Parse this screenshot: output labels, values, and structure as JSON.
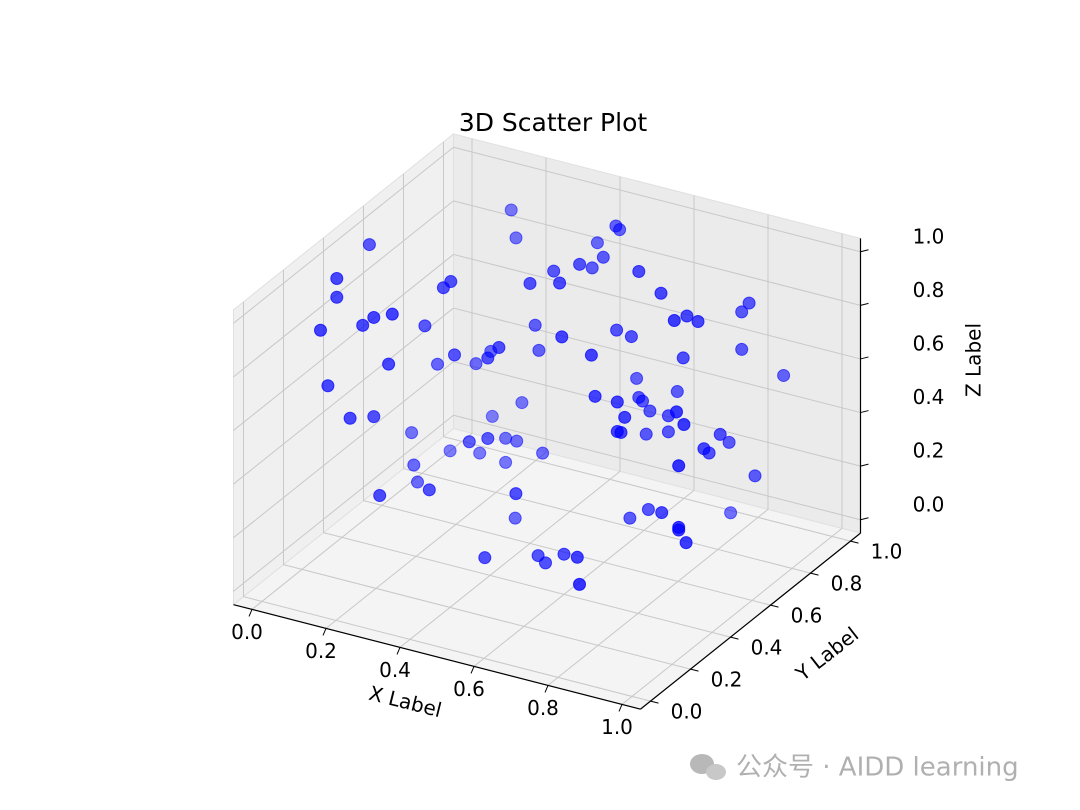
{
  "chart_data": {
    "type": "scatter3d",
    "title": "3D Scatter Plot",
    "x_label": "X Label",
    "y_label": "Y Label",
    "z_label": "Z Label",
    "color": "#0000ff",
    "xlim": [
      0,
      1
    ],
    "ylim": [
      0,
      1
    ],
    "zlim": [
      0,
      1
    ],
    "xticks": [
      {
        "value": 0,
        "label": "0.0"
      },
      {
        "value": 0.2,
        "label": "0.2"
      },
      {
        "value": 0.4,
        "label": "0.4"
      },
      {
        "value": 0.6,
        "label": "0.6"
      },
      {
        "value": 0.8,
        "label": "0.8"
      },
      {
        "value": 1,
        "label": "1.0"
      }
    ],
    "yticks": [
      {
        "value": 0,
        "label": "0.0"
      },
      {
        "value": 0.2,
        "label": "0.2"
      },
      {
        "value": 0.4,
        "label": "0.4"
      },
      {
        "value": 0.6,
        "label": "0.6"
      },
      {
        "value": 0.8,
        "label": "0.8"
      },
      {
        "value": 1,
        "label": "1.0"
      }
    ],
    "zticks": [
      {
        "value": 0,
        "label": "0.0"
      },
      {
        "value": 0.2,
        "label": "0.2"
      },
      {
        "value": 0.4,
        "label": "0.4"
      },
      {
        "value": 0.6,
        "label": "0.6"
      },
      {
        "value": 0.8,
        "label": "0.8"
      },
      {
        "value": 1,
        "label": "1.0"
      }
    ],
    "grid": true,
    "x": [
      0.16,
      0.2,
      0.02,
      0.04,
      0.04,
      0.05,
      0.11,
      0.14,
      0.19,
      0.17,
      0.22,
      0.24,
      0.4,
      0.41,
      0.48,
      0.48,
      0.46,
      0.42,
      0.49,
      0.47,
      0.48,
      0.64,
      0.7,
      0.79,
      0.77,
      0.8,
      0.81,
      0.83,
      0.81,
      0.88,
      0.76,
      0.62,
      0.58,
      0.62,
      0.54,
      0.36,
      0.37,
      0.37,
      0.24,
      0.34,
      0.2,
      0.25,
      0.15,
      0.18,
      0.07,
      0.13,
      0.14,
      0.08,
      0.27,
      0.19,
      0.34,
      0.29,
      0.13,
      0.21,
      0.28,
      0.31,
      0.38,
      0.28,
      0.14,
      0.15,
      0.29,
      0.21,
      0.47,
      0.36,
      0.44,
      0.53,
      0.55,
      0.6,
      0.69,
      0.75,
      0.63,
      0.69,
      0.58,
      0.64,
      0.65,
      0.71,
      0.7,
      0.69,
      0.67,
      0.72,
      0.85,
      0.87,
      0.69,
      0.72,
      0.66,
      0.87,
      0.83,
      0.86,
      0.83,
      0.91,
      0.9,
      0.67,
      0.72,
      0.81,
      0.91,
      0.91,
      0.93,
      0.78
    ],
    "y": [
      0.95,
      0.9,
      0.5,
      0.3,
      0.3,
      0.2,
      0.3,
      0.3,
      0.3,
      0.5,
      0.5,
      0.5,
      0.6,
      0.7,
      0.6,
      0.7,
      0.8,
      0.9,
      0.8,
      0.9,
      0.9,
      0.7,
      0.7,
      0.6,
      0.7,
      0.7,
      0.9,
      0.9,
      0.9,
      0.98,
      0.7,
      0.7,
      0.7,
      0.5,
      0.5,
      0.7,
      0.7,
      0.5,
      0.7,
      0.5,
      0.7,
      0.5,
      0.6,
      0.3,
      0.2,
      0.2,
      0.3,
      0.6,
      0.8,
      0.8,
      0.5,
      0.5,
      0.7,
      0.7,
      0.7,
      0.7,
      0.7,
      0.7,
      0.5,
      0.5,
      0.3,
      0.2,
      0.4,
      0.6,
      0.3,
      0.4,
      0.4,
      0.4,
      0.3,
      0.2,
      0.5,
      0.5,
      0.8,
      0.7,
      0.7,
      0.5,
      0.5,
      0.5,
      0.7,
      0.7,
      0.5,
      0.5,
      0.8,
      0.7,
      0.7,
      0.6,
      0.7,
      0.7,
      0.8,
      0.4,
      0.8,
      0.6,
      0.6,
      0.5,
      0.4,
      0.4,
      0.4,
      0.9
    ],
    "z": [
      0.9,
      0.84,
      0.99,
      0.99,
      0.92,
      0.86,
      0.84,
      0.88,
      0.91,
      0.74,
      0.9,
      0.93,
      0.92,
      0.91,
      0.95,
      0.96,
      0.88,
      0.9,
      0.93,
      0.98,
      0.97,
      0.99,
      0.93,
      0.92,
      0.87,
      0.86,
      0.78,
      0.82,
      0.64,
      0.52,
      0.71,
      0.74,
      0.75,
      0.79,
      0.83,
      0.69,
      0.6,
      0.73,
      0.55,
      0.68,
      0.49,
      0.66,
      0.53,
      0.72,
      0.66,
      0.56,
      0.51,
      0.25,
      0.31,
      0.23,
      0.38,
      0.35,
      0.14,
      0.16,
      0.24,
      0.24,
      0.22,
      0.15,
      0.21,
      0.15,
      0.29,
      0.3,
      0.28,
      0.03,
      0.09,
      0.07,
      0.05,
      0.1,
      0.18,
      0.16,
      0.64,
      0.64,
      0.51,
      0.52,
      0.51,
      0.59,
      0.53,
      0.53,
      0.48,
      0.48,
      0.66,
      0.62,
      0.5,
      0.42,
      0.39,
      0.47,
      0.38,
      0.46,
      0.36,
      0.54,
      0.26,
      0.14,
      0.19,
      0.27,
      0.31,
      0.3,
      0.26,
      0.02
    ]
  },
  "watermark": "公众号 · AIDD learning"
}
